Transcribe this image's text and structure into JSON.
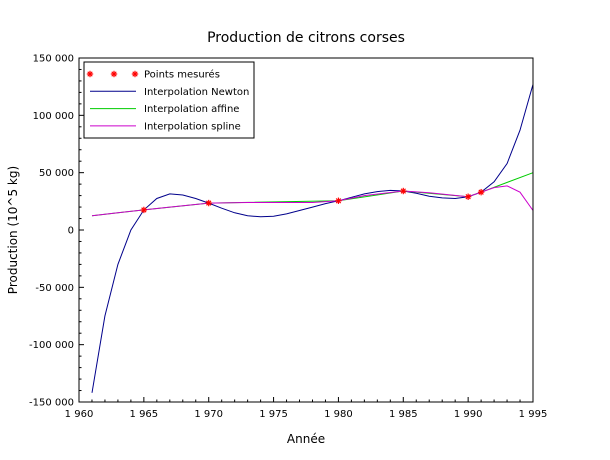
{
  "chart_data": {
    "type": "line",
    "title": "Production de citrons corses",
    "xlabel": "Année",
    "ylabel": "Production (10^5 kg)",
    "xlim": [
      1960,
      1995
    ],
    "ylim": [
      -150000,
      150000
    ],
    "xticks": [
      1960,
      1965,
      1970,
      1975,
      1980,
      1985,
      1990,
      1995
    ],
    "xtick_labels": [
      "1 960",
      "1 965",
      "1 970",
      "1 975",
      "1 980",
      "1 985",
      "1 990",
      "1 995"
    ],
    "yticks": [
      -150000,
      -100000,
      -50000,
      0,
      50000,
      100000,
      150000
    ],
    "ytick_labels": [
      "-150 000",
      "-100 000",
      "-50 000",
      "0",
      "50 000",
      "100 000",
      "150 000"
    ],
    "grid": false,
    "legend_position": "top-left",
    "series": [
      {
        "name": "Points mesurés",
        "marker": "*",
        "color": "#ff0000",
        "x": [
          1965,
          1970,
          1980,
          1985,
          1990,
          1991
        ],
        "y": [
          17500,
          23500,
          25500,
          34000,
          29000,
          33000
        ]
      },
      {
        "name": "Interpolation Newton",
        "color": "#00008b",
        "x": [
          1961,
          1962,
          1963,
          1964,
          1965,
          1966,
          1967,
          1968,
          1969,
          1970,
          1971,
          1972,
          1973,
          1974,
          1975,
          1976,
          1977,
          1978,
          1979,
          1980,
          1981,
          1982,
          1983,
          1984,
          1985,
          1986,
          1987,
          1988,
          1989,
          1990,
          1991,
          1992,
          1993,
          1994,
          1995
        ],
        "y": [
          -142000,
          -75000,
          -30000,
          0,
          17500,
          27500,
          31500,
          30500,
          27500,
          23500,
          19000,
          15000,
          12500,
          11500,
          12000,
          14000,
          17000,
          20000,
          23000,
          25500,
          28500,
          31500,
          33500,
          34500,
          34000,
          32000,
          29500,
          28000,
          27500,
          29000,
          33000,
          42000,
          58000,
          87000,
          127000
        ]
      },
      {
        "name": "Interpolation affine",
        "color": "#00cc00",
        "x": [
          1961,
          1965,
          1970,
          1980,
          1985,
          1990,
          1991,
          1995
        ],
        "y": [
          12500,
          17500,
          23500,
          25500,
          34000,
          29000,
          33000,
          50000
        ]
      },
      {
        "name": "Interpolation spline",
        "color": "#cc00cc",
        "x": [
          1961,
          1963,
          1965,
          1967,
          1970,
          1973,
          1975,
          1978,
          1980,
          1982,
          1985,
          1987,
          1990,
          1991,
          1992,
          1993,
          1994,
          1995
        ],
        "y": [
          12500,
          15000,
          17500,
          20000,
          23500,
          24000,
          24000,
          24000,
          25500,
          30000,
          34000,
          32500,
          29000,
          33000,
          37000,
          38500,
          33000,
          17000
        ]
      }
    ]
  }
}
